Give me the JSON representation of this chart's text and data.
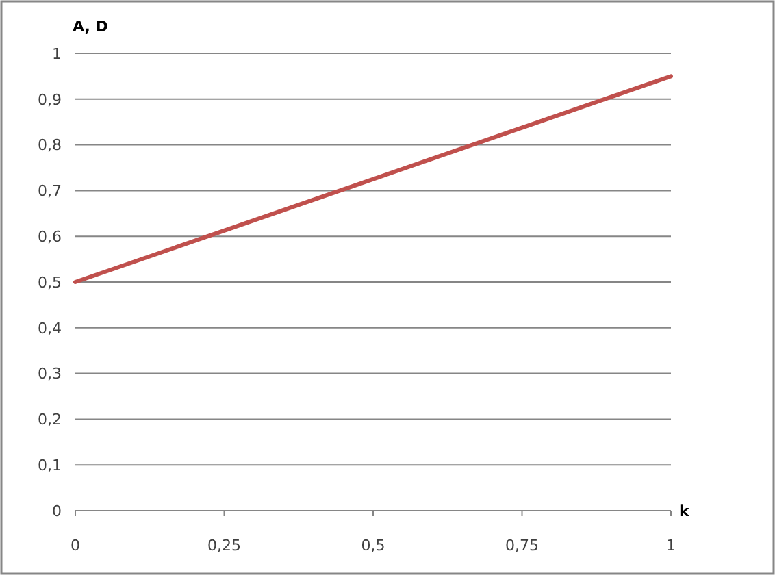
{
  "chart_data": {
    "type": "line",
    "ylabel": "A, D",
    "xlabel": "k",
    "x": [
      0,
      1
    ],
    "series": [
      {
        "color": "#c0504d",
        "values": [
          0.5,
          0.95
        ]
      }
    ],
    "xlim": [
      0,
      1
    ],
    "xticks": [
      0,
      {
        "value": 0.25,
        "label": "0,25"
      },
      {
        "value": 0.5,
        "label": "0,5"
      },
      {
        "value": 0.75,
        "label": "0,75"
      },
      1
    ],
    "ylim": [
      0,
      1
    ],
    "yticks": [
      0,
      {
        "value": 0.1,
        "label": "0,1"
      },
      {
        "value": 0.2,
        "label": "0,2"
      },
      {
        "value": 0.3,
        "label": "0,3"
      },
      {
        "value": 0.4,
        "label": "0,4"
      },
      {
        "value": 0.5,
        "label": "0,5"
      },
      {
        "value": 0.6,
        "label": "0,6"
      },
      {
        "value": 0.7,
        "label": "0,7"
      },
      {
        "value": 0.8,
        "label": "0,8"
      },
      {
        "value": 0.9,
        "label": "0,9"
      },
      1
    ],
    "grid": "y",
    "marker": "none",
    "line_style": "solid"
  }
}
